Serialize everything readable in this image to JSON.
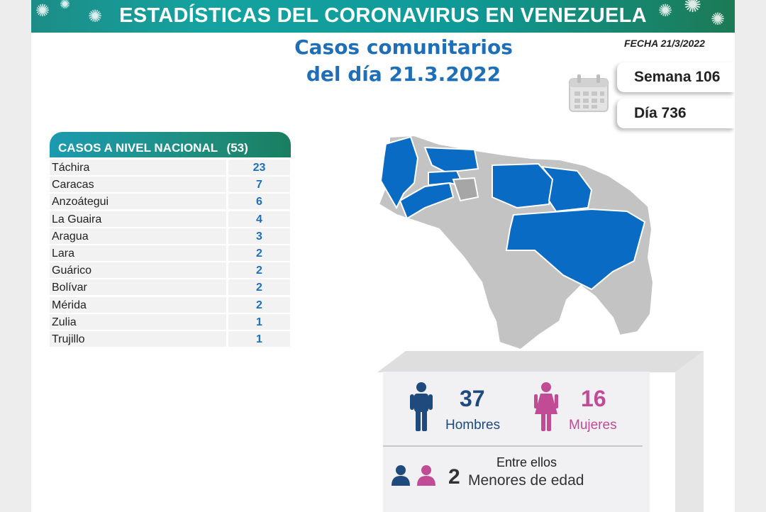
{
  "header": {
    "title": "ESTADÍSTICAS DEL CORONAVIRUS EN VENEZUELA",
    "subtitle_line1": "Casos comunitarios",
    "subtitle_line2": "del día 21.3.2022",
    "fecha": "FECHA 21/3/2022"
  },
  "calendar": {
    "icon": "calendar-icon",
    "semana": "Semana 106",
    "dia": "Día 736"
  },
  "national": {
    "label": "CASOS A NIVEL NACIONAL",
    "total": "(53)",
    "rows": [
      {
        "state": "Táchira",
        "cases": "23"
      },
      {
        "state": "Caracas",
        "cases": "7"
      },
      {
        "state": "Anzoátegui",
        "cases": "6"
      },
      {
        "state": "La Guaira",
        "cases": "4"
      },
      {
        "state": "Aragua",
        "cases": "3"
      },
      {
        "state": "Lara",
        "cases": "2"
      },
      {
        "state": "Guárico",
        "cases": "2"
      },
      {
        "state": "Bolívar",
        "cases": "2"
      },
      {
        "state": "Mérida",
        "cases": "2"
      },
      {
        "state": "Zulia",
        "cases": "1"
      },
      {
        "state": "Trujillo",
        "cases": "1"
      }
    ]
  },
  "gender": {
    "men_count": "37",
    "men_label": "Hombres",
    "women_count": "16",
    "women_label": "Mujeres",
    "minors_heading": "Entre ellos",
    "minors_count": "2",
    "minors_label": "Menores de edad"
  },
  "colors": {
    "accent_blue": "#1f6fb8",
    "men": "#1e4a7d",
    "women": "#c24b95",
    "map_highlight": "#0a6bc4",
    "map_base": "#c3c3c3",
    "banner": "#14a3a0"
  }
}
